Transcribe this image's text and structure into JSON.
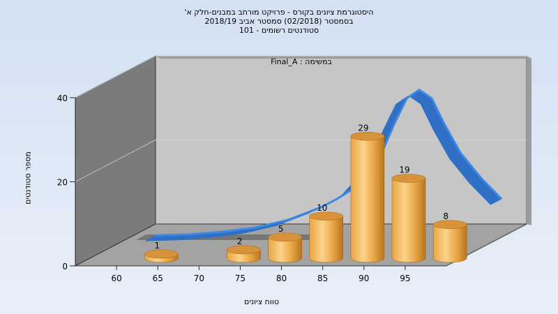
{
  "titles": [
    "היסטוגרמת ציונים בקורס - פרויקט מורחב במבנים-חלק א'",
    "בסמסטר  (02/2018)  סמסטר אביב 2018/19",
    "סטודנטים רשומים - 101"
  ],
  "colors": {
    "bar_light": "#fbd48a",
    "bar_mid": "#e9a545",
    "bar_dark": "#b87420",
    "bar_top": "#d7933a",
    "curve_front": "#2f6fc5",
    "curve_top": "#3d88e2",
    "curve_shadow": "#6e6e6e",
    "wall_back": "#c6c6c6",
    "wall_left": "#7b7b7b",
    "floor": "#a3a3a3"
  },
  "chart_data": {
    "type": "bar",
    "series_label": "Final_A : במשימה",
    "xlabel": "טווח ציונים",
    "ylabel": "מספר סטודנטים",
    "x_ticks": [
      "60",
      "65",
      "70",
      "75",
      "80",
      "85",
      "90",
      "95"
    ],
    "y_ticks": [
      "0",
      "20",
      "40"
    ],
    "ylim": [
      0,
      40
    ],
    "bars": [
      {
        "x": 60,
        "value": 1
      },
      {
        "x": 70,
        "value": 2
      },
      {
        "x": 75,
        "value": 5
      },
      {
        "x": 80,
        "value": 10
      },
      {
        "x": 85,
        "value": 29
      },
      {
        "x": 90,
        "value": 19
      },
      {
        "x": 95,
        "value": 8
      }
    ],
    "distribution_curve": [
      {
        "x": 58,
        "y": 0.4
      },
      {
        "x": 62,
        "y": 0.6
      },
      {
        "x": 66,
        "y": 1.2
      },
      {
        "x": 70,
        "y": 2.2
      },
      {
        "x": 74,
        "y": 4.0
      },
      {
        "x": 78,
        "y": 7.0
      },
      {
        "x": 80,
        "y": 9.0
      },
      {
        "x": 82,
        "y": 11.5
      },
      {
        "x": 85,
        "y": 18.0
      },
      {
        "x": 87,
        "y": 27.0
      },
      {
        "x": 88.5,
        "y": 33.0
      },
      {
        "x": 90,
        "y": 35.0
      },
      {
        "x": 91.5,
        "y": 33.0
      },
      {
        "x": 93,
        "y": 27.0
      },
      {
        "x": 95,
        "y": 20.0
      },
      {
        "x": 97.5,
        "y": 14.0
      },
      {
        "x": 100,
        "y": 9.0
      }
    ]
  }
}
